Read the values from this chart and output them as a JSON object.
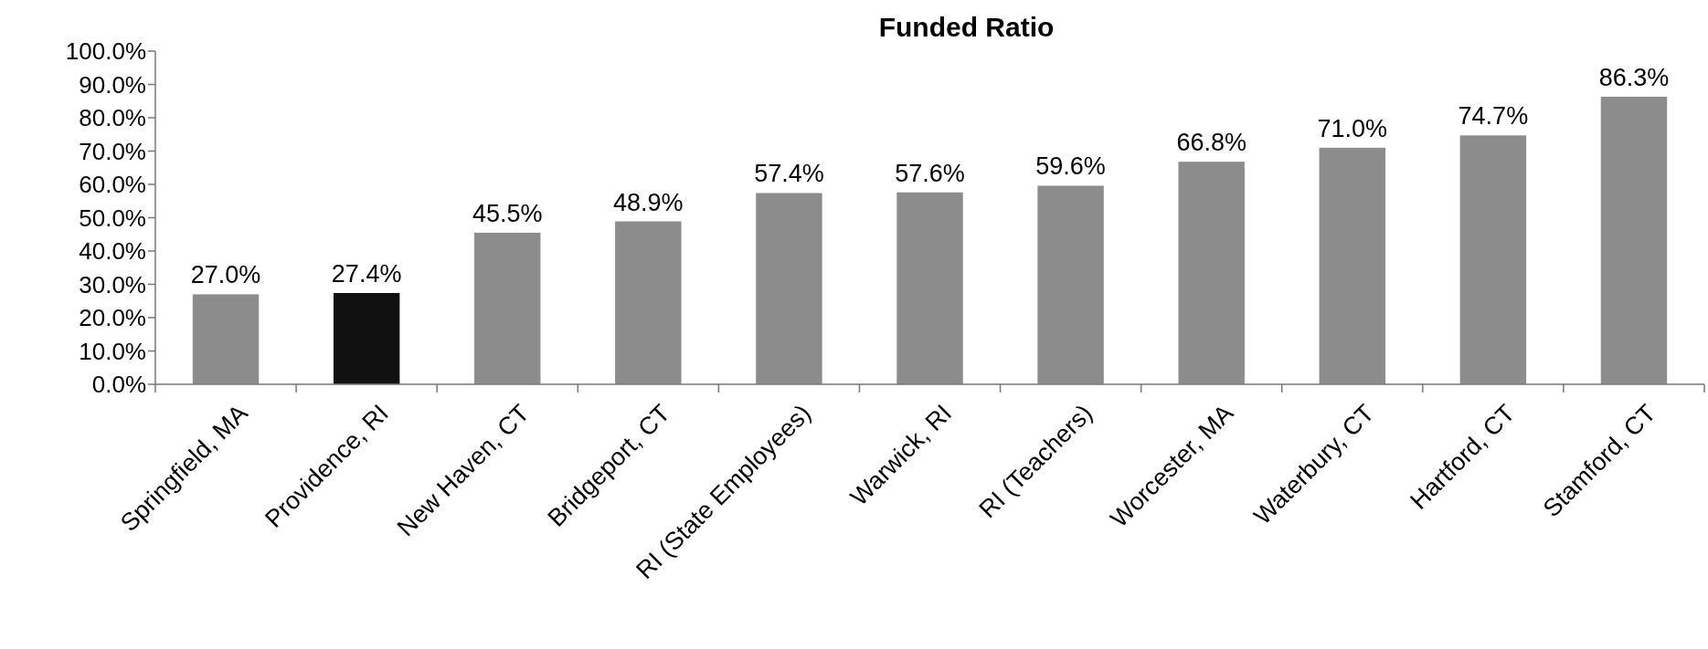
{
  "chart_data": {
    "type": "bar",
    "title": "Funded Ratio",
    "categories": [
      "Springfield, MA",
      "Providence, RI",
      "New Haven, CT",
      "Bridgeport, CT",
      "RI (State Employees)",
      "Warwick, RI",
      "RI (Teachers)",
      "Worcester, MA",
      "Waterbury, CT",
      "Hartford, CT",
      "Stamford, CT"
    ],
    "values": [
      27.0,
      27.4,
      45.5,
      48.9,
      57.4,
      57.6,
      59.6,
      66.8,
      71.0,
      74.7,
      86.3
    ],
    "colors": [
      "#8c8c8c",
      "#111111",
      "#8c8c8c",
      "#8c8c8c",
      "#8c8c8c",
      "#8c8c8c",
      "#8c8c8c",
      "#8c8c8c",
      "#8c8c8c",
      "#8c8c8c",
      "#8c8c8c"
    ],
    "value_labels": [
      "27.0%",
      "27.4%",
      "45.5%",
      "48.9%",
      "57.4%",
      "57.6%",
      "59.6%",
      "66.8%",
      "71.0%",
      "74.7%",
      "86.3%"
    ],
    "ylim": [
      0,
      100
    ],
    "yticks": [
      {
        "value": 0,
        "label": "0.0%"
      },
      {
        "value": 10,
        "label": "10.0%"
      },
      {
        "value": 20,
        "label": "20.0%"
      },
      {
        "value": 30,
        "label": "30.0%"
      },
      {
        "value": 40,
        "label": "40.0%"
      },
      {
        "value": 50,
        "label": "50.0%"
      },
      {
        "value": 60,
        "label": "60.0%"
      },
      {
        "value": 70,
        "label": "70.0%"
      },
      {
        "value": 80,
        "label": "80.0%"
      },
      {
        "value": 90,
        "label": "90.0%"
      },
      {
        "value": 100,
        "label": "100.0%"
      }
    ],
    "grid": false
  }
}
